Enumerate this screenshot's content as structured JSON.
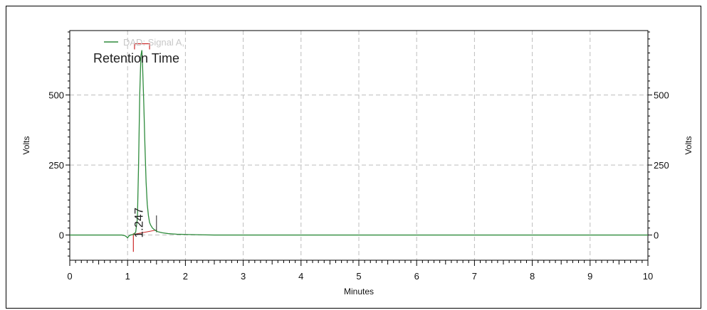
{
  "chart_data": {
    "type": "line",
    "xlabel": "Minutes",
    "ylabel_left": "Volts",
    "ylabel_right": "Volts",
    "xlim": [
      0,
      10
    ],
    "ylim": [
      -90,
      730
    ],
    "x_ticks": [
      0,
      1,
      2,
      3,
      4,
      5,
      6,
      7,
      8,
      9,
      10
    ],
    "y_ticks": [
      0,
      250,
      500
    ],
    "grid": true,
    "legend_position": "top-left",
    "annotation": "Retention Time",
    "peak_label": "1.247",
    "series": [
      {
        "name": "DAD: Signal A,",
        "color": "#2e8b3c",
        "x": [
          0,
          0.5,
          0.9,
          0.95,
          0.98,
          1.0,
          1.02,
          1.05,
          1.1,
          1.14,
          1.17,
          1.19,
          1.21,
          1.23,
          1.247,
          1.26,
          1.28,
          1.3,
          1.32,
          1.34,
          1.36,
          1.38,
          1.4,
          1.43,
          1.47,
          1.52,
          1.6,
          1.7,
          1.85,
          2.0,
          2.2,
          2.5,
          3,
          4,
          5,
          6,
          7,
          8,
          9,
          10
        ],
        "y": [
          0,
          0,
          0,
          -2,
          -6,
          -10,
          -4,
          0,
          2,
          10,
          60,
          250,
          500,
          640,
          660,
          600,
          470,
          320,
          190,
          110,
          70,
          45,
          35,
          25,
          18,
          12,
          8,
          5,
          3,
          2,
          1,
          0,
          0,
          0,
          0,
          0,
          0,
          0,
          0,
          0
        ]
      }
    ],
    "baseline_marks": {
      "color": "#cc2a2a",
      "start": 1.1,
      "end": 1.5
    }
  }
}
